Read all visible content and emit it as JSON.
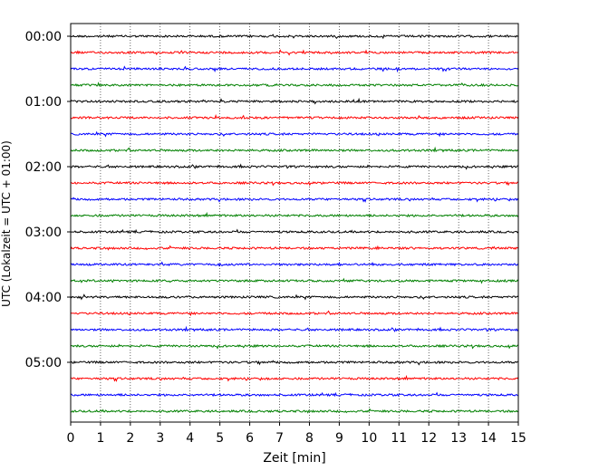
{
  "chart_data": {
    "type": "line",
    "title": "",
    "xlabel": "Zeit  [min]",
    "ylabel": "UTC (Lokalzeit = UTC + 01:00)",
    "xlim": [
      0,
      15
    ],
    "x_ticks": [
      "0",
      "1",
      "2",
      "3",
      "4",
      "5",
      "6",
      "7",
      "8",
      "9",
      "10",
      "11",
      "12",
      "13",
      "14",
      "15"
    ],
    "y_tick_labels": [
      "00:00",
      "01:00",
      "02:00",
      "03:00",
      "04:00",
      "05:00"
    ],
    "grid": "vertical dotted",
    "trace_interval_minutes": 15,
    "trace_count": 24,
    "trace_colors": [
      "#000000",
      "#ff0000",
      "#0000ff",
      "#008000"
    ],
    "traces": [
      {
        "start": "00:00"
      },
      {
        "start": "00:15"
      },
      {
        "start": "00:30"
      },
      {
        "start": "00:45"
      },
      {
        "start": "01:00"
      },
      {
        "start": "01:15"
      },
      {
        "start": "01:30"
      },
      {
        "start": "01:45"
      },
      {
        "start": "02:00"
      },
      {
        "start": "02:15"
      },
      {
        "start": "02:30"
      },
      {
        "start": "02:45"
      },
      {
        "start": "03:00"
      },
      {
        "start": "03:15"
      },
      {
        "start": "03:30"
      },
      {
        "start": "03:45"
      },
      {
        "start": "04:00"
      },
      {
        "start": "04:15"
      },
      {
        "start": "04:30"
      },
      {
        "start": "04:45"
      },
      {
        "start": "05:00"
      },
      {
        "start": "05:15"
      },
      {
        "start": "05:30"
      },
      {
        "start": "05:45"
      }
    ]
  }
}
